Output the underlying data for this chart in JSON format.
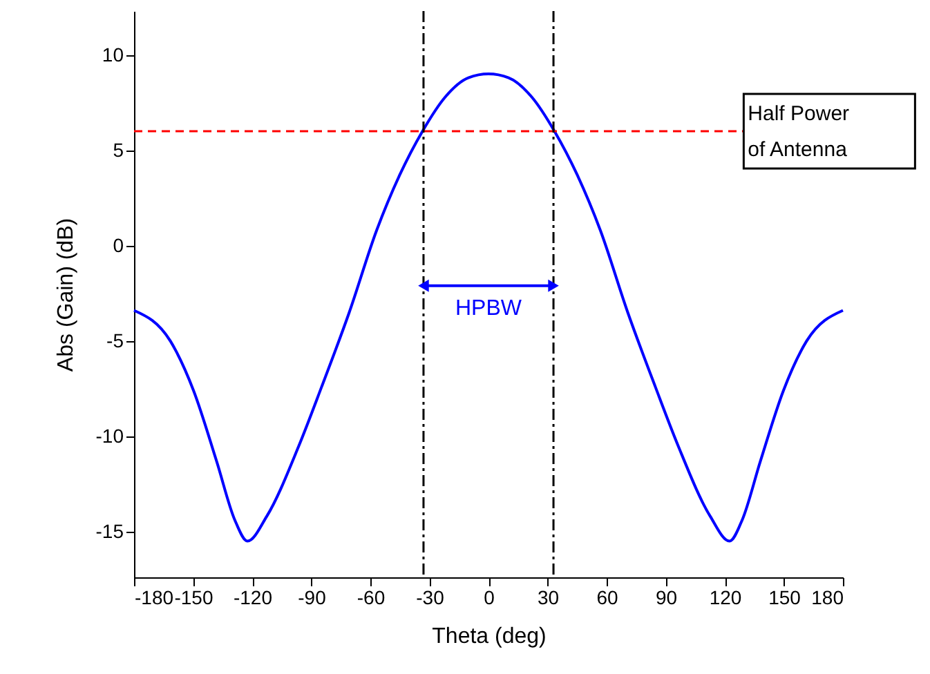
{
  "chart_data": {
    "type": "line",
    "xlabel": "Theta (deg)",
    "ylabel": "Abs (Gain) (dB)",
    "xlim": [
      -180,
      180
    ],
    "ylim": [
      -17.4,
      12.3
    ],
    "xticks": [
      -180,
      -150,
      -120,
      -90,
      -60,
      -30,
      0,
      30,
      60,
      90,
      120,
      150,
      180
    ],
    "yticks": [
      -15,
      -10,
      -5,
      0,
      5,
      10
    ],
    "grid": false,
    "marker": "none",
    "line_style": "solid",
    "series": [
      {
        "color": "#0000ff",
        "x": [
          -180,
          -161.6,
          -149.8,
          -138.1,
          -128.8,
          -122.4,
          -112.6,
          -96.3,
          -84.7,
          -70.7,
          -56.8,
          -45.1,
          -33.5,
          -21.9,
          -10.2,
          0,
          10.2,
          21.9,
          33.5,
          45.1,
          56.8,
          70.7,
          84.7,
          96.3,
          112.6,
          122.4,
          128.8,
          138.1,
          149.8,
          161.6,
          180
        ],
        "values": [
          -3.4,
          -5.0,
          -7.6,
          -11.3,
          -14.4,
          -15.5,
          -14.2,
          -10.5,
          -7.4,
          -3.5,
          0.8,
          3.7,
          6.0,
          7.8,
          8.8,
          9.0,
          8.8,
          7.8,
          6.0,
          3.7,
          0.8,
          -3.5,
          -7.4,
          -10.5,
          -14.2,
          -15.5,
          -14.4,
          -11.3,
          -7.6,
          -5.0,
          -3.4
        ]
      }
    ],
    "ref_lines": [
      {
        "axis": "y",
        "value": 6,
        "label": "Half Power of Antenna",
        "color": "#ff0000",
        "line_style": "dashed"
      },
      {
        "axis": "x",
        "value": -33,
        "color": "#000000",
        "line_style": "dashdot"
      },
      {
        "axis": "x",
        "value": 33,
        "color": "#000000",
        "line_style": "dashdot"
      }
    ],
    "annotations": [
      "HPBW"
    ]
  }
}
